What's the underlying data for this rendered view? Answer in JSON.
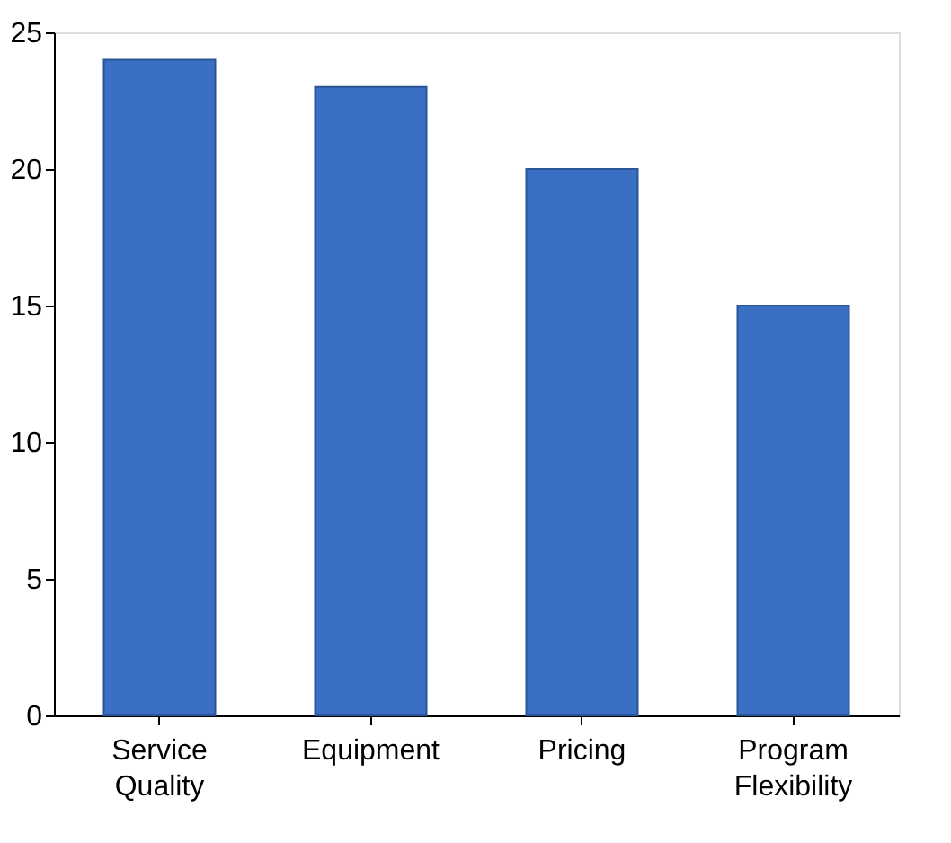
{
  "chart_data": {
    "type": "bar",
    "categories": [
      "Service Quality",
      "Equipment",
      "Pricing",
      "Program Flexibility"
    ],
    "values": [
      24,
      23,
      20,
      15
    ],
    "color": "#3b6fc4",
    "ylim": [
      0,
      25
    ],
    "yticks": [
      0,
      5,
      10,
      15,
      20,
      25
    ],
    "grid": false
  }
}
